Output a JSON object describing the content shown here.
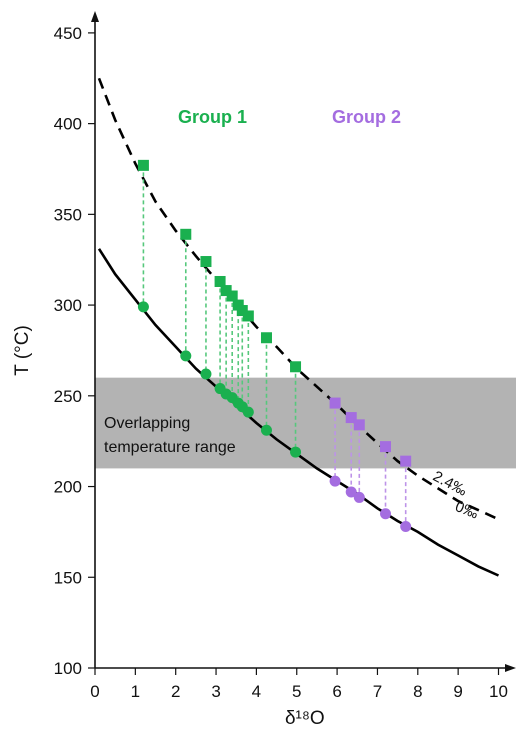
{
  "chart_data": {
    "type": "scatter",
    "xlabel": "δ¹⁸O",
    "ylabel": "T (°C)",
    "xlim": [
      0,
      10.4
    ],
    "ylim": [
      100,
      460
    ],
    "xticks": [
      "0",
      "1",
      "2",
      "3",
      "4",
      "5",
      "6",
      "7",
      "8",
      "9",
      "10"
    ],
    "yticks": [
      "100",
      "150",
      "200",
      "250",
      "300",
      "350",
      "400",
      "450"
    ],
    "shaded_band": {
      "y_range": [
        210,
        260
      ],
      "label_lines": [
        "Overlapping",
        "temperature range"
      ],
      "color": "#b3b3b3"
    },
    "curves": [
      {
        "label": "2.4‰",
        "style": "dashed",
        "points": [
          [
            0.1,
            425
          ],
          [
            0.5,
            402
          ],
          [
            1,
            378
          ],
          [
            1.5,
            357
          ],
          [
            2,
            341
          ],
          [
            2.5,
            327
          ],
          [
            3,
            314
          ],
          [
            3.5,
            301
          ],
          [
            4,
            288
          ],
          [
            4.5,
            277
          ],
          [
            5,
            265
          ],
          [
            5.5,
            255
          ],
          [
            6,
            245
          ],
          [
            6.5,
            234
          ],
          [
            7,
            224
          ],
          [
            7.5,
            214
          ],
          [
            8,
            206
          ],
          [
            8.5,
            199
          ],
          [
            9,
            192
          ],
          [
            9.5,
            187
          ],
          [
            10,
            182
          ]
        ]
      },
      {
        "label": "0‰",
        "style": "solid",
        "points": [
          [
            0.1,
            331
          ],
          [
            0.5,
            317
          ],
          [
            1,
            303
          ],
          [
            1.5,
            289
          ],
          [
            2,
            277
          ],
          [
            2.5,
            265
          ],
          [
            3,
            255
          ],
          [
            3.5,
            245
          ],
          [
            4,
            235
          ],
          [
            4.5,
            226
          ],
          [
            5,
            218
          ],
          [
            5.5,
            210
          ],
          [
            6,
            203
          ],
          [
            6.5,
            196
          ],
          [
            7,
            188
          ],
          [
            7.5,
            181
          ],
          [
            8,
            175
          ],
          [
            8.5,
            168
          ],
          [
            9,
            162
          ],
          [
            9.5,
            156
          ],
          [
            10,
            151
          ]
        ]
      }
    ],
    "series": [
      {
        "name": "Group 1",
        "color": "#1ab04f",
        "line_color": "#56c87c",
        "x": [
          1.2,
          2.25,
          2.75,
          3.1,
          3.25,
          3.4,
          3.55,
          3.65,
          3.8,
          4.25,
          4.97
        ],
        "dashed_curve_T": [
          377,
          339,
          324,
          313,
          308,
          305,
          300,
          297,
          294,
          282,
          266
        ],
        "solid_curve_T": [
          299,
          272,
          262,
          254,
          251,
          249,
          246,
          244,
          241,
          231,
          219
        ]
      },
      {
        "name": "Group 2",
        "color": "#a46de0",
        "line_color": "#bd93e8",
        "x": [
          5.95,
          6.35,
          6.55,
          7.2,
          7.7
        ],
        "dashed_curve_T": [
          246,
          238,
          234,
          222,
          214
        ],
        "solid_curve_T": [
          203,
          197,
          194,
          185,
          178
        ]
      }
    ]
  }
}
